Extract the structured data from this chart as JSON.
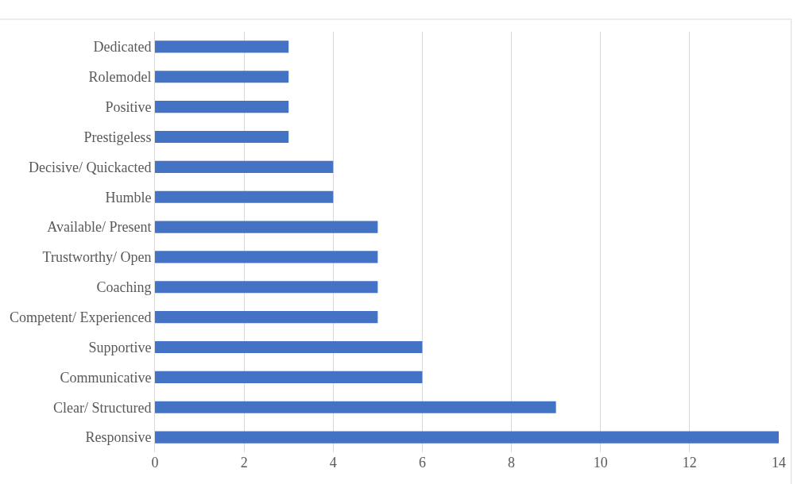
{
  "chart_data": {
    "type": "bar",
    "orientation": "horizontal",
    "categories": [
      "Dedicated",
      "Rolemodel",
      "Positive",
      "Prestigeless",
      "Decisive/ Quickacted",
      "Humble",
      "Available/ Present",
      "Trustworthy/ Open",
      "Coaching",
      "Competent/ Experienced",
      "Supportive",
      "Communicative",
      "Clear/ Structured",
      "Responsive"
    ],
    "values": [
      3,
      3,
      3,
      3,
      4,
      4,
      5,
      5,
      5,
      5,
      6,
      6,
      9,
      14
    ],
    "color": "#4472c4",
    "xlim": [
      0,
      14
    ],
    "xticks": [
      0,
      2,
      4,
      6,
      8,
      10,
      12,
      14
    ],
    "grid": "x",
    "legend": false
  }
}
